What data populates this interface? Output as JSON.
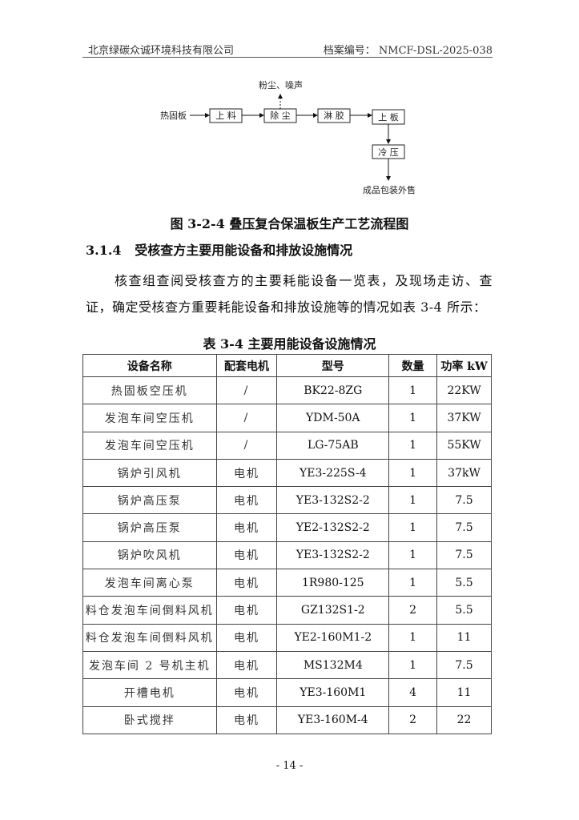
{
  "header": {
    "company": "北京绿碳众诚环境科技有限公司",
    "archive_label": "档案编号：",
    "archive_no": "NMCF-DSL-2025-038"
  },
  "flowchart": {
    "input": "热固板",
    "steps": [
      "上 料",
      "除 尘",
      "淋 胶",
      "上 板",
      "冷 压"
    ],
    "emission": "粉尘、噪声",
    "output": "成品包装外售"
  },
  "figure_caption": "图 3-2-4 叠压复合保温板生产工艺流程图",
  "section": {
    "number": "3.1.4",
    "title": "受核查方主要用能设备和排放设施情况"
  },
  "paragraph": "核查组查阅受核查方的主要耗能设备一览表，及现场走访、查证，确定受核查方重要耗能设备和排放设施等的情况如表 3-4 所示：",
  "table": {
    "title": "表 3-4  主要用能设备设施情况",
    "headers": [
      "设备名称",
      "配套电机",
      "型号",
      "数量",
      "功率 kW"
    ],
    "rows": [
      [
        "热固板空压机",
        "/",
        "BK22-8ZG",
        "1",
        "22KW"
      ],
      [
        "发泡车间空压机",
        "/",
        "YDM-50A",
        "1",
        "37KW"
      ],
      [
        "发泡车间空压机",
        "/",
        "LG-75AB",
        "1",
        "55KW"
      ],
      [
        "锅炉引风机",
        "电机",
        "YE3-225S-4",
        "1",
        "37kW"
      ],
      [
        "锅炉高压泵",
        "电机",
        "YE3-132S2-2",
        "1",
        "7.5"
      ],
      [
        "锅炉高压泵",
        "电机",
        "YE2-132S2-2",
        "1",
        "7.5"
      ],
      [
        "锅炉吹风机",
        "电机",
        "YE3-132S2-2",
        "1",
        "7.5"
      ],
      [
        "发泡车间离心泵",
        "电机",
        "1R980-125",
        "1",
        "5.5"
      ],
      [
        "料仓发泡车间倒料风机",
        "电机",
        "GZ132S1-2",
        "2",
        "5.5"
      ],
      [
        "料仓发泡车间倒料风机",
        "电机",
        "YE2-160M1-2",
        "1",
        "11"
      ],
      [
        "发泡车间 2 号机主机",
        "电机",
        "MS132M4",
        "1",
        "7.5"
      ],
      [
        "开槽电机",
        "电机",
        "YE3-160M1",
        "4",
        "11"
      ],
      [
        "卧式搅拌",
        "电机",
        "YE3-160M-4",
        "2",
        "22"
      ]
    ]
  },
  "footer": {
    "page": "- 14 -"
  }
}
